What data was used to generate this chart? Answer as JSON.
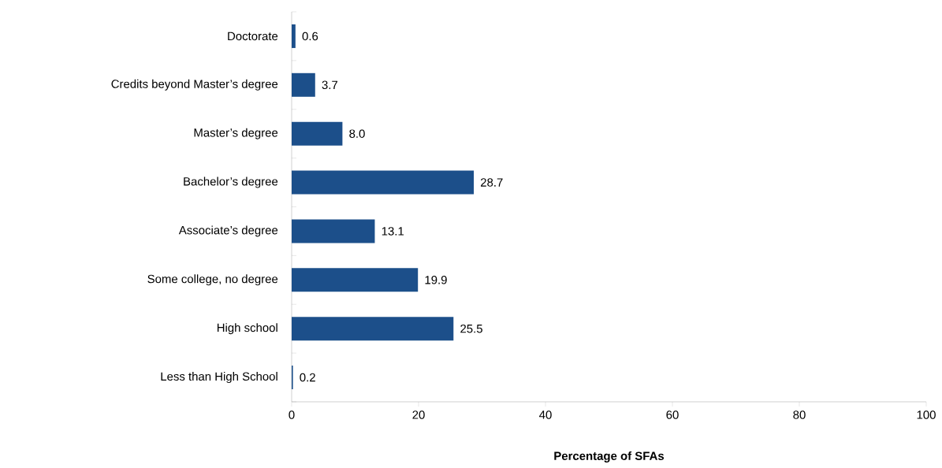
{
  "chart_data": {
    "type": "bar",
    "orientation": "horizontal",
    "xlabel": "Percentage of SFAs",
    "categories": [
      "Doctorate",
      "Credits beyond Master’s degree",
      "Master’s degree",
      "Bachelor’s degree",
      "Associate’s degree",
      "Some college, no degree",
      "High school",
      "Less than High School"
    ],
    "values": [
      0.6,
      3.7,
      8.0,
      28.7,
      13.1,
      19.9,
      25.5,
      0.2
    ],
    "value_labels": [
      "0.6",
      "3.7",
      "8.0",
      "28.7",
      "13.1",
      "19.9",
      "25.5",
      "0.2"
    ],
    "color": "#1c4f8a",
    "xlim": [
      0,
      100
    ],
    "xticks": [
      0,
      20,
      40,
      60,
      80,
      100
    ],
    "grid": false
  }
}
